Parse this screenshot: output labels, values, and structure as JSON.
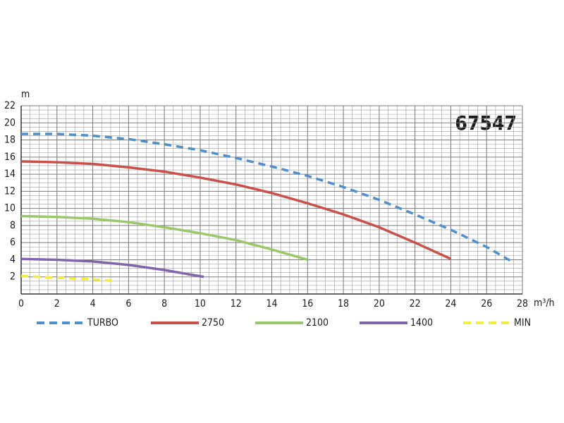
{
  "chart_data": {
    "type": "line",
    "annotation": "67547",
    "x_label": "m³/h",
    "y_label": "m",
    "xlim": [
      0,
      28
    ],
    "xticks": [
      0,
      2,
      4,
      6,
      8,
      10,
      12,
      14,
      16,
      18,
      20,
      22,
      24,
      26,
      28
    ],
    "ylim": [
      0,
      22
    ],
    "yticks": [
      2,
      4,
      6,
      8,
      10,
      12,
      14,
      16,
      18,
      20,
      22
    ],
    "grid": true,
    "minor_grid": true,
    "legend": "bottom",
    "series": [
      {
        "name": "TURBO",
        "color": "#4f8fcc",
        "dashed": true,
        "x": [
          0,
          2,
          4,
          6,
          8,
          10,
          12,
          14,
          16,
          18,
          20,
          22,
          24,
          26,
          27.4
        ],
        "values": [
          18.7,
          18.7,
          18.5,
          18.1,
          17.5,
          16.8,
          15.9,
          14.9,
          13.8,
          12.5,
          11.0,
          9.3,
          7.5,
          5.5,
          3.8
        ]
      },
      {
        "name": "2750",
        "color": "#c9504b",
        "dashed": false,
        "x": [
          0,
          2,
          4,
          6,
          8,
          10,
          12,
          14,
          16,
          18,
          20,
          22,
          24
        ],
        "values": [
          15.5,
          15.4,
          15.2,
          14.8,
          14.3,
          13.6,
          12.8,
          11.8,
          10.6,
          9.3,
          7.8,
          6.0,
          4.1
        ]
      },
      {
        "name": "2100",
        "color": "#9bc66a",
        "dashed": false,
        "x": [
          0,
          2,
          4,
          6,
          8,
          10,
          12,
          14,
          16
        ],
        "values": [
          9.1,
          9.0,
          8.8,
          8.4,
          7.8,
          7.1,
          6.3,
          5.2,
          4.0
        ]
      },
      {
        "name": "1400",
        "color": "#8066a8",
        "dashed": false,
        "x": [
          0,
          2,
          4,
          6,
          8,
          10.2
        ],
        "values": [
          4.1,
          4.0,
          3.8,
          3.4,
          2.8,
          2.0
        ]
      },
      {
        "name": "MIN",
        "color": "#f2ec3a",
        "dashed": true,
        "x": [
          0,
          2,
          4,
          5.3
        ],
        "values": [
          2.1,
          1.9,
          1.7,
          1.5
        ]
      }
    ]
  }
}
